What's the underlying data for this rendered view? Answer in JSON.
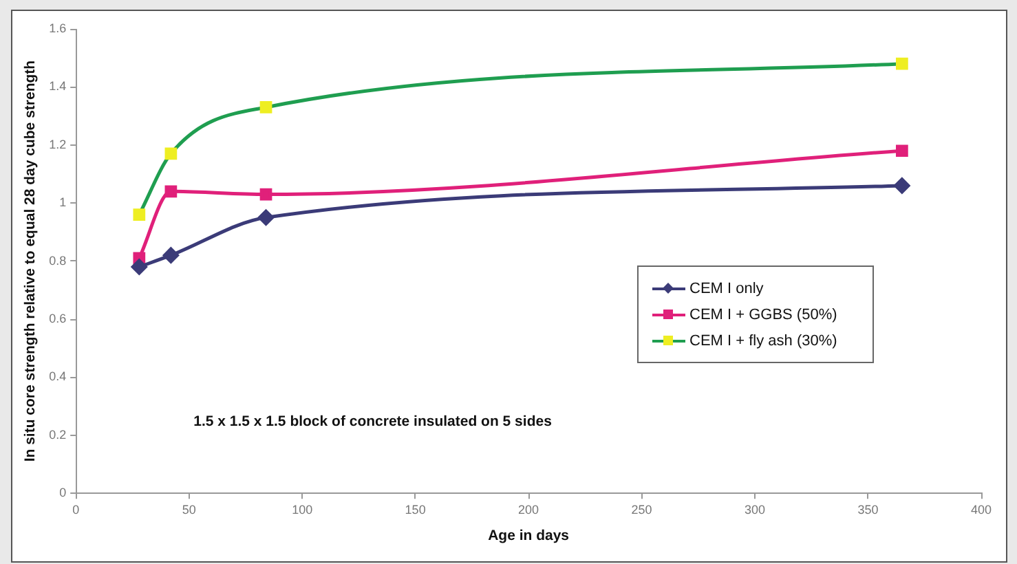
{
  "chart_data": {
    "type": "line",
    "xlabel": "Age in days",
    "ylabel": "In situ core strength relative to equal 28 day cube strength",
    "x": [
      28,
      42,
      84,
      365
    ],
    "series": [
      {
        "name": "CEM I only",
        "color": "#3b3b78",
        "marker": "diamond",
        "values": [
          0.78,
          0.82,
          0.95,
          1.06
        ]
      },
      {
        "name": "CEM I + GGBS (50%)",
        "color": "#e0207a",
        "marker": "square",
        "values": [
          0.81,
          1.04,
          1.03,
          1.18
        ]
      },
      {
        "name": "CEM I + fly ash (30%)",
        "color": "#1f9e50",
        "colors": [
          "#eeee22",
          "#eeee22",
          "#eeee22",
          "#eeee22"
        ],
        "marker": "square",
        "values": [
          0.96,
          1.17,
          1.33,
          1.48
        ]
      }
    ],
    "xlim": [
      0,
      400
    ],
    "xticks": [
      0,
      50,
      100,
      150,
      200,
      250,
      300,
      350,
      400
    ],
    "ylim": [
      0,
      1.6
    ],
    "yticks": [
      0,
      0.2,
      0.4,
      0.6,
      0.8,
      1,
      1.2,
      1.4,
      1.6
    ],
    "grid": false,
    "legend": "right",
    "annotations": [
      "1.5 x 1.5 x 1.5 block of concrete insulated on 5 sides"
    ]
  }
}
